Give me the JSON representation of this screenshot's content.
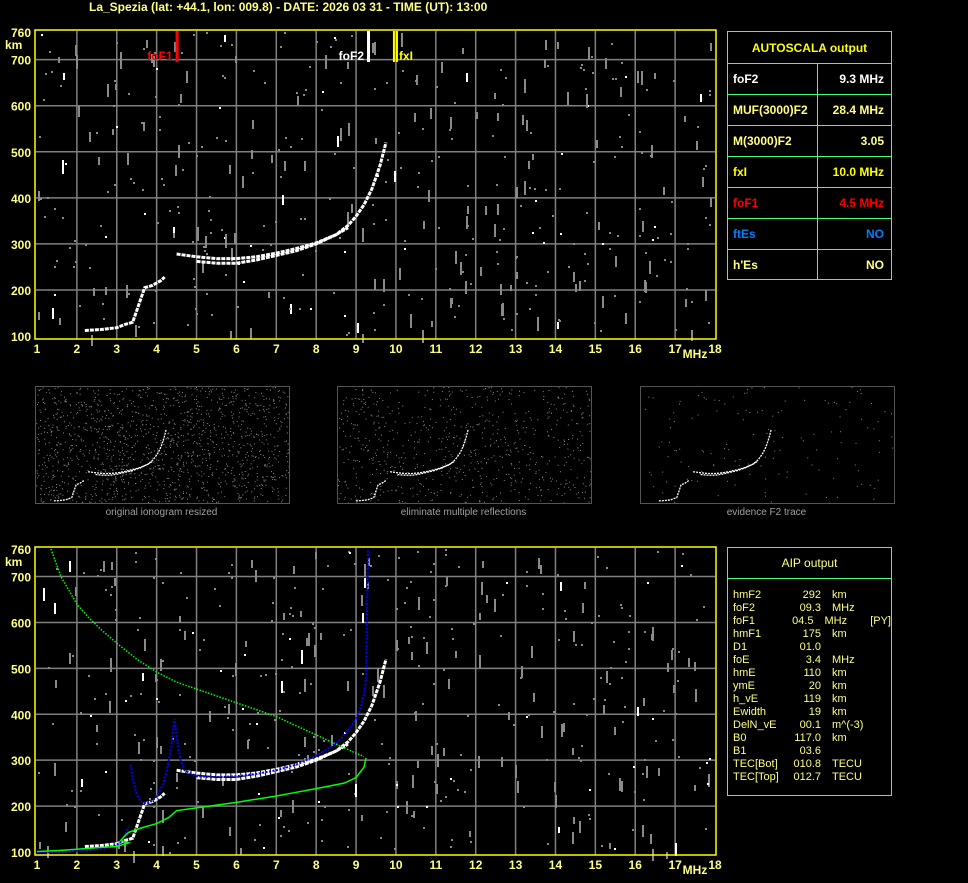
{
  "title": "La_Spezia (lat: +44.1, lon: 009.8) - DATE: 2026 03 31 - TIME (UT): 13:00",
  "axes": {
    "y_ticks": [
      "760",
      "700",
      "600",
      "500",
      "400",
      "300",
      "200",
      "100"
    ],
    "y_unit": "km",
    "x_ticks": [
      "1",
      "2",
      "3",
      "4",
      "5",
      "6",
      "7",
      "8",
      "9",
      "10",
      "11",
      "12",
      "13",
      "14",
      "15",
      "16",
      "17",
      "18"
    ],
    "x_unit": "MHz"
  },
  "markers": [
    {
      "label": "foF1",
      "freq": 4.5,
      "color": "#ff0000"
    },
    {
      "label": "foF2",
      "freq": 9.3,
      "color": "#ffffff"
    },
    {
      "label": "fxI",
      "freq": 10.0,
      "color": "#ffff00"
    }
  ],
  "autoscala": {
    "title": "AUTOSCALA output",
    "rows": [
      {
        "key": "foF2",
        "value": "9.3 MHz",
        "color": "#ffffff"
      },
      {
        "key": "MUF(3000)F2",
        "value": "28.4 MHz",
        "color": "#ffff80"
      },
      {
        "key": "M(3000)F2",
        "value": "3.05",
        "color": "#ffff80"
      },
      {
        "key": "fxI",
        "value": "10.0 MHz",
        "color": "#ffff00"
      },
      {
        "key": "foF1",
        "value": "4.5 MHz",
        "color": "#ff0000"
      },
      {
        "key": "ftEs",
        "value": "NO",
        "color": "#0080ff"
      },
      {
        "key": "h'Es",
        "value": "NO",
        "color": "#ffff80"
      }
    ]
  },
  "aip": {
    "title": "AIP output",
    "rows": [
      {
        "name": "hmF2",
        "value": "292",
        "unit": "km",
        "flag": ""
      },
      {
        "name": "foF2",
        "value": "09.3",
        "unit": "MHz",
        "flag": ""
      },
      {
        "name": "foF1",
        "value": "04.5",
        "unit": "MHz",
        "flag": "[PY]"
      },
      {
        "name": "hmF1",
        "value": "175",
        "unit": "km",
        "flag": ""
      },
      {
        "name": "D1",
        "value": "01.0",
        "unit": "",
        "flag": ""
      },
      {
        "name": "foE",
        "value": "3.4",
        "unit": "MHz",
        "flag": ""
      },
      {
        "name": "hmE",
        "value": "110",
        "unit": "km",
        "flag": ""
      },
      {
        "name": "ymE",
        "value": "20",
        "unit": "km",
        "flag": ""
      },
      {
        "name": "h_vE",
        "value": "119",
        "unit": "km",
        "flag": ""
      },
      {
        "name": "Ewidth",
        "value": "19",
        "unit": "km",
        "flag": ""
      },
      {
        "name": "DelN_vE",
        "value": "00.1",
        "unit": "m^(-3)",
        "flag": ""
      },
      {
        "name": "B0",
        "value": "117.0",
        "unit": "km",
        "flag": ""
      },
      {
        "name": "B1",
        "value": "03.6",
        "unit": "",
        "flag": ""
      },
      {
        "name": "TEC[Bot]",
        "value": "010.8",
        "unit": "TECU",
        "flag": ""
      },
      {
        "name": "TEC[Top]",
        "value": "012.7",
        "unit": "TECU",
        "flag": ""
      }
    ]
  },
  "thumbnails": [
    {
      "caption": "original ionogram resized"
    },
    {
      "caption": "eliminate multiple reflections"
    },
    {
      "caption": "evidence F2 trace"
    }
  ],
  "chart_data": {
    "type": "scatter",
    "title": "",
    "xlabel": "MHz",
    "ylabel": "km",
    "xlim": [
      1,
      18
    ],
    "ylim": [
      100,
      760
    ],
    "grid": true,
    "colors": {
      "frame": "#ffff00",
      "grid": "#808080",
      "trace": "#ffffff",
      "fit": "#0000ff",
      "profile": "#00ff00"
    },
    "series": [
      {
        "color": "#ffffff",
        "x": [
          2.2,
          2.6,
          3.0,
          3.2,
          3.4,
          3.7,
          3.9,
          4.1,
          4.2
        ],
        "y": [
          112,
          114,
          118,
          125,
          130,
          205,
          210,
          220,
          228
        ]
      },
      {
        "color": "#ffffff",
        "x": [
          4.5,
          5.0,
          5.5,
          6.0,
          6.5,
          7.0,
          7.5,
          8.0,
          8.5,
          8.8,
          9.0,
          9.2,
          9.4,
          9.6,
          9.75
        ],
        "y": [
          278,
          272,
          268,
          268,
          272,
          280,
          290,
          302,
          320,
          340,
          360,
          385,
          420,
          470,
          520
        ]
      },
      {
        "color": "#ffffff",
        "x": [
          5.0,
          5.5,
          6.0,
          6.5,
          7.0,
          7.5,
          8.0,
          8.5,
          8.8
        ],
        "y": [
          262,
          258,
          258,
          265,
          275,
          285,
          300,
          320,
          335
        ]
      },
      {
        "color": "#0000ff",
        "x": [
          1.0,
          1.5,
          2.0,
          2.5,
          2.8,
          3.0,
          3.1,
          3.2,
          3.3
        ],
        "y": [
          100,
          100,
          102,
          106,
          110,
          116,
          122,
          135,
          155
        ]
      },
      {
        "color": "#0000ff",
        "x": [
          3.35,
          3.4,
          3.5,
          3.6,
          3.75,
          3.9,
          4.0,
          4.15,
          4.25,
          4.35,
          4.45,
          4.5,
          4.6,
          4.7,
          5.0,
          5.5,
          6.0,
          6.5,
          7.0,
          7.5,
          8.0,
          8.5,
          8.8,
          9.0,
          9.1,
          9.2,
          9.25,
          9.3
        ],
        "y": [
          290,
          260,
          225,
          210,
          205,
          212,
          222,
          245,
          275,
          320,
          390,
          350,
          300,
          278,
          265,
          263,
          265,
          270,
          278,
          290,
          310,
          335,
          365,
          390,
          410,
          445,
          480,
          760
        ]
      },
      {
        "color": "#00ff00",
        "x": [
          1.35,
          1.6,
          2.0,
          2.3,
          2.6,
          3.0,
          3.5,
          4.0,
          4.5,
          5.0,
          5.5,
          6.0,
          6.5,
          7.0,
          7.5,
          8.0,
          8.5,
          9.0,
          9.2
        ],
        "y": [
          760,
          700,
          640,
          610,
          585,
          555,
          520,
          492,
          470,
          455,
          440,
          425,
          410,
          395,
          375,
          355,
          335,
          315,
          308
        ]
      },
      {
        "color": "#00ff00",
        "x": [
          9.25,
          9.2,
          9.0,
          8.7,
          8.0,
          7.5,
          7.0,
          6.0,
          5.0,
          4.5,
          4.3,
          4.0,
          3.6,
          3.3,
          3.2,
          3.1,
          3.3,
          3.0,
          2.6,
          2.0,
          1.5,
          1.0
        ],
        "y": [
          305,
          285,
          262,
          250,
          238,
          230,
          222,
          208,
          196,
          190,
          175,
          162,
          152,
          143,
          135,
          125,
          120,
          112,
          110,
          106,
          103,
          101
        ]
      }
    ]
  }
}
